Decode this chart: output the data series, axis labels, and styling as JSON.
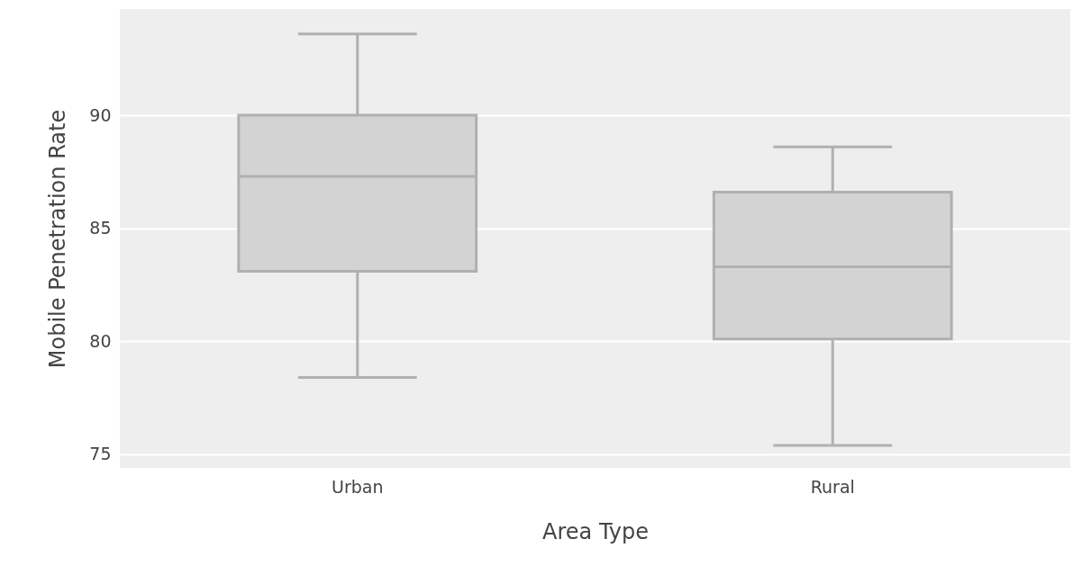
{
  "chart_data": {
    "type": "box",
    "xlabel": "Area Type",
    "ylabel": "Mobile Penetration Rate",
    "categories": [
      "Urban",
      "Rural"
    ],
    "boxes": [
      {
        "low": 78.4,
        "q1": 83.1,
        "median": 87.3,
        "q3": 90.0,
        "high": 93.6
      },
      {
        "low": 75.4,
        "q1": 80.1,
        "median": 83.3,
        "q3": 86.6,
        "high": 88.6
      }
    ],
    "color": "#d3d3d3",
    "ylim": [
      74.4,
      94.7
    ],
    "yticks": [
      75,
      80,
      85,
      90
    ],
    "grid": "y"
  }
}
